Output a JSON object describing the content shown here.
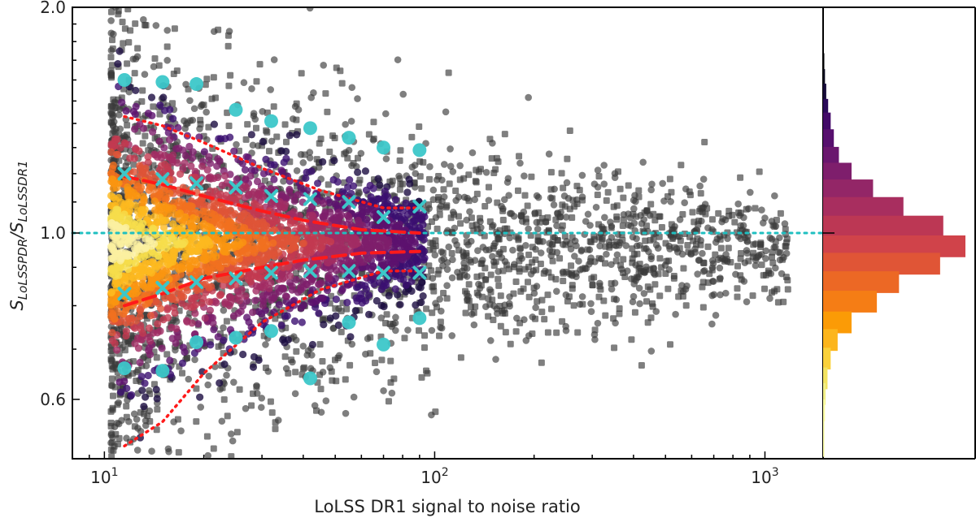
{
  "chart_data": [
    {
      "type": "scatter",
      "title": "",
      "xlabel": "LoLSS DR1 signal to noise ratio",
      "ylabel_main": "S",
      "ylabel_sub1": "LoLSSPDR",
      "ylabel_sep": "/S",
      "ylabel_sub2": "LoLSSDR1",
      "xscale": "log",
      "yscale": "log",
      "xlim": [
        8,
        1500
      ],
      "ylim": [
        0.5,
        2.0
      ],
      "xticks": [
        10,
        100,
        1000
      ],
      "xtick_base": "10",
      "xtick_exps": [
        "1",
        "2",
        "3"
      ],
      "yticks": [
        0.6,
        1.0,
        2.0
      ],
      "ytick_labels": [
        "0.6",
        "1.0",
        "2.0"
      ],
      "reference_line_y": 1.0,
      "density_cloud": {
        "description": "dense core colored by density (inferno colormap) near ratio 1.0",
        "x_range": [
          10,
          100
        ],
        "center_y": 0.97
      },
      "series": [
        {
          "style": "cyan-circles",
          "color": "#3cc7c9",
          "points": [
            [
              11.5,
              1.6
            ],
            [
              15,
              1.59
            ],
            [
              19,
              1.58
            ],
            [
              25,
              1.46
            ],
            [
              32,
              1.41
            ],
            [
              42,
              1.38
            ],
            [
              55,
              1.34
            ],
            [
              70,
              1.3
            ],
            [
              90,
              1.29
            ],
            [
              11.5,
              0.66
            ],
            [
              15,
              0.655
            ],
            [
              19,
              0.715
            ],
            [
              25,
              0.725
            ],
            [
              32,
              0.74
            ],
            [
              42,
              0.64
            ],
            [
              55,
              0.76
            ],
            [
              70,
              0.71
            ],
            [
              90,
              0.77
            ]
          ]
        },
        {
          "style": "cyan-crosses",
          "color": "#3cc7c9",
          "points": [
            [
              11.5,
              1.2
            ],
            [
              15,
              1.18
            ],
            [
              19,
              1.165
            ],
            [
              25,
              1.15
            ],
            [
              32,
              1.12
            ],
            [
              42,
              1.11
            ],
            [
              55,
              1.1
            ],
            [
              70,
              1.05
            ],
            [
              90,
              1.085
            ],
            [
              11.5,
              0.83
            ],
            [
              15,
              0.845
            ],
            [
              19,
              0.86
            ],
            [
              25,
              0.87
            ],
            [
              32,
              0.885
            ],
            [
              42,
              0.89
            ],
            [
              55,
              0.89
            ],
            [
              70,
              0.885
            ],
            [
              90,
              0.885
            ]
          ]
        },
        {
          "style": "red-dashed",
          "color": "#ff1a1a",
          "points": [
            [
              11.5,
              1.19
            ],
            [
              15,
              1.16
            ],
            [
              20,
              1.12
            ],
            [
              30,
              1.07
            ],
            [
              40,
              1.04
            ],
            [
              60,
              1.01
            ],
            [
              90,
              1.0
            ]
          ],
          "points_lower": [
            [
              11.5,
              0.8
            ],
            [
              15,
              0.83
            ],
            [
              20,
              0.87
            ],
            [
              30,
              0.9
            ],
            [
              40,
              0.92
            ],
            [
              60,
              0.94
            ],
            [
              90,
              0.945
            ]
          ]
        },
        {
          "style": "red-dotted",
          "color": "#ff1a1a",
          "points": [
            [
              11.5,
              1.43
            ],
            [
              15,
              1.39
            ],
            [
              20,
              1.32
            ],
            [
              30,
              1.22
            ],
            [
              45,
              1.14
            ],
            [
              70,
              1.08
            ],
            [
              90,
              1.08
            ]
          ],
          "points_lower": [
            [
              11.5,
              0.52
            ],
            [
              15,
              0.56
            ],
            [
              20,
              0.65
            ],
            [
              30,
              0.76
            ],
            [
              45,
              0.84
            ],
            [
              70,
              0.89
            ],
            [
              90,
              0.89
            ]
          ]
        }
      ]
    },
    {
      "type": "bar",
      "orientation": "horizontal",
      "description": "marginal histogram of the flux ratio",
      "bin_centers": [
        1.68,
        1.6,
        1.53,
        1.46,
        1.4,
        1.33,
        1.26,
        1.2,
        1.14,
        1.08,
        1.02,
        0.96,
        0.91,
        0.86,
        0.81,
        0.76,
        0.72,
        0.68,
        0.64,
        0.61,
        0.58,
        0.55,
        0.52
      ],
      "counts": [
        1,
        3,
        5,
        8,
        12,
        17,
        25,
        45,
        79,
        127,
        190,
        225,
        185,
        120,
        85,
        45,
        23,
        12,
        7,
        4,
        3,
        2,
        1
      ],
      "colors": [
        "#000004",
        "#07061c",
        "#160b39",
        "#2a0a59",
        "#420a68",
        "#57106e",
        "#6a176e",
        "#7e1e6c",
        "#932667",
        "#a82e5f",
        "#bc3754",
        "#d0434a",
        "#e05536",
        "#ec6825",
        "#f57d15",
        "#fb9b06",
        "#fcb51c",
        "#fad13b",
        "#f3e361",
        "#f2f088",
        "#fcffa4",
        "#fcffa4",
        "#fcffa4"
      ]
    }
  ]
}
